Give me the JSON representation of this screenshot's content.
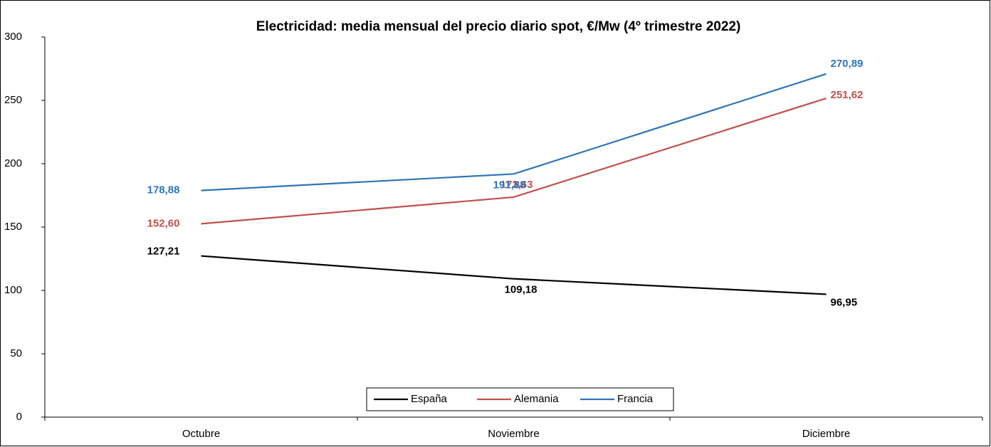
{
  "chart_data": {
    "type": "line",
    "title": "Electricidad: media mensual del precio diario spot, €/Mw (4º trimestre 2022)",
    "categories": [
      "Octubre",
      "Noviembre",
      "Diciembre"
    ],
    "series": [
      {
        "name": "España",
        "color": "#000000",
        "values": [
          127.21,
          109.18,
          96.95
        ],
        "value_labels": [
          "127,21",
          "109,18",
          "96,95"
        ]
      },
      {
        "name": "Alemania",
        "color": "#c0504d",
        "values": [
          152.6,
          173.63,
          251.62
        ],
        "value_labels": [
          "152,60",
          "173,63",
          "251,62"
        ]
      },
      {
        "name": "Francia",
        "color": "#2e75b6",
        "values": [
          178.88,
          191.88,
          270.89
        ],
        "value_labels": [
          "178,88",
          "191,88",
          "270,89"
        ]
      }
    ],
    "ylim": [
      0,
      300
    ],
    "yticks": [
      0,
      50,
      100,
      150,
      200,
      250,
      300
    ],
    "grid": false,
    "legend": "bottom"
  }
}
